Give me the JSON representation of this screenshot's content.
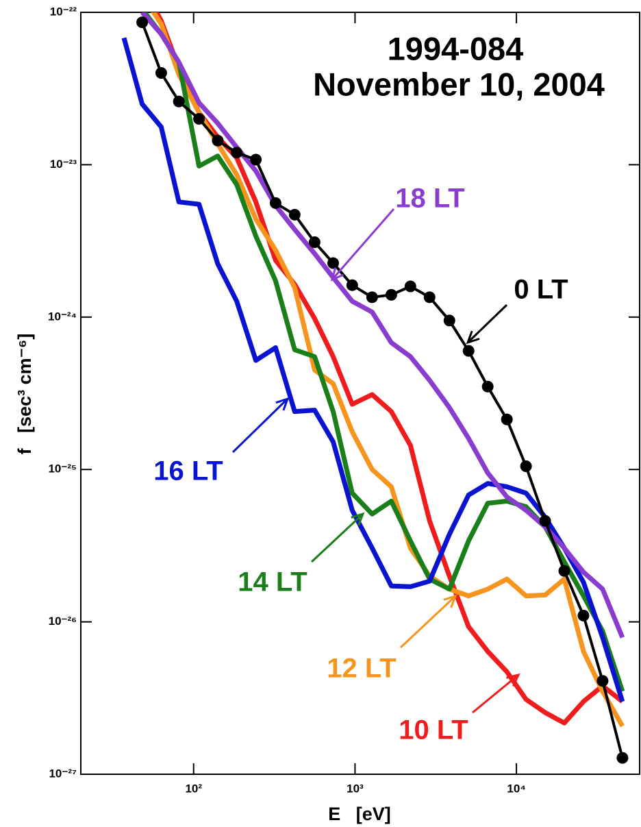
{
  "chart_data": {
    "type": "line",
    "title": "1994-084",
    "subtitle": "November 10, 2004",
    "x_label": "E   [eV]",
    "y_label": "f   [sec³ cm⁻⁶]",
    "log_x": true,
    "log_y": true,
    "xlim": [
      20,
      58000
    ],
    "ylim": [
      1e-27,
      1e-22
    ],
    "xticks": [
      {
        "value": 100,
        "label": "10²"
      },
      {
        "value": 1000,
        "label": "10³"
      },
      {
        "value": 10000,
        "label": "10⁴"
      }
    ],
    "yticks": [
      {
        "value": 1e-27,
        "label": "10⁻²⁷"
      },
      {
        "value": 1e-26,
        "label": "10⁻²⁶"
      },
      {
        "value": 1e-25,
        "label": "10⁻²⁵"
      },
      {
        "value": 1e-24,
        "label": "10⁻²⁴"
      },
      {
        "value": 1e-23,
        "label": "10⁻²³"
      },
      {
        "value": 1e-22,
        "label": "10⁻²²"
      }
    ],
    "x": [
      37,
      48,
      63,
      81,
      108,
      141,
      185,
      243,
      322,
      423,
      562,
      732,
      961,
      1276,
      1678,
      2204,
      2897,
      3845,
      5053,
      6640,
      8730,
      11470,
      15070,
      19800,
      26020,
      34200,
      45400
    ],
    "series": [
      {
        "name": "10 LT",
        "color": "#ee1c1c",
        "values": [
          null,
          1.5e-22,
          8.8e-23,
          4.3e-23,
          2.2e-23,
          1.52e-23,
          1.11e-23,
          5.7e-24,
          2.36e-24,
          1.64e-24,
          9.8e-25,
          5.5e-25,
          2.68e-25,
          3.1e-25,
          2.4e-25,
          1.44e-25,
          4.6e-26,
          2e-26,
          9.3e-27,
          6.4e-27,
          4.7e-27,
          3.1e-27,
          2.54e-27,
          2.17e-27,
          3e-27,
          3.8e-27,
          3e-27
        ]
      },
      {
        "name": "12 LT",
        "color": "#f7941d",
        "values": [
          null,
          1.3e-22,
          8.4e-23,
          3.9e-23,
          2.2e-23,
          1.37e-23,
          8.6e-24,
          4.4e-24,
          2.75e-24,
          1.56e-24,
          4.5e-25,
          3.65e-25,
          1.77e-25,
          1e-25,
          7.7e-26,
          3.05e-26,
          2e-26,
          1.64e-26,
          1.48e-26,
          1.64e-26,
          1.91e-26,
          1.48e-26,
          1.5e-26,
          1.91e-26,
          6.4e-27,
          3.5e-27,
          2.07e-27
        ]
      },
      {
        "name": "14 LT",
        "color": "#1a7f1a",
        "values": [
          null,
          1.05e-22,
          7.2e-23,
          4.7e-23,
          9.8e-24,
          1.14e-23,
          7.4e-24,
          3.4e-24,
          1.73e-24,
          6.1e-25,
          5.5e-25,
          2.4e-25,
          7e-26,
          5.1e-26,
          6.2e-26,
          3.4e-26,
          1.91e-26,
          1.64e-26,
          3.4e-26,
          6e-26,
          6.2e-26,
          5.7e-26,
          4.2e-26,
          2.48e-26,
          1.48e-26,
          8.7e-27,
          3.5e-27
        ]
      },
      {
        "name": "16 LT",
        "color": "#0a14d0",
        "values": [
          6.8e-23,
          2.5e-23,
          1.77e-23,
          5.7e-24,
          5.5e-24,
          2.24e-24,
          1.27e-24,
          5.2e-25,
          6.3e-25,
          2.4e-25,
          2.45e-25,
          1.52e-25,
          5.4e-26,
          3.05e-26,
          1.72e-26,
          1.7e-26,
          1.85e-26,
          3.75e-26,
          6.8e-26,
          8.1e-26,
          7.7e-26,
          7e-26,
          4.85e-26,
          3.05e-26,
          1.82e-26,
          7.9e-27,
          3e-27
        ]
      },
      {
        "name": "18 LT",
        "color": "#8a3ccf",
        "values": [
          null,
          1e-22,
          7.2e-23,
          4.7e-23,
          2.55e-23,
          1.87e-23,
          1.3e-23,
          9.1e-24,
          5.4e-24,
          3.76e-24,
          2.61e-24,
          1.82e-24,
          1.27e-24,
          1.08e-24,
          6.8e-25,
          5.5e-25,
          3.85e-25,
          2.55e-25,
          1.6e-25,
          9.5e-26,
          6.6e-26,
          5.4e-26,
          4.2e-26,
          3.05e-26,
          2.12e-26,
          1.64e-26,
          7.9e-27
        ]
      },
      {
        "name": "0 LT",
        "color": "#000000",
        "markers": true,
        "values": [
          null,
          8.6e-23,
          4e-23,
          2.6e-23,
          2e-23,
          1.44e-23,
          1.2e-23,
          1.08e-23,
          5.6e-24,
          4.7e-24,
          3.1e-24,
          2.26e-24,
          1.62e-24,
          1.35e-24,
          1.4e-24,
          1.59e-24,
          1.35e-24,
          9.5e-25,
          6e-25,
          3.5e-25,
          2.13e-25,
          1.05e-25,
          4.6e-26,
          2.16e-26,
          1.1e-26,
          4.1e-27,
          1.28e-27
        ]
      }
    ]
  }
}
